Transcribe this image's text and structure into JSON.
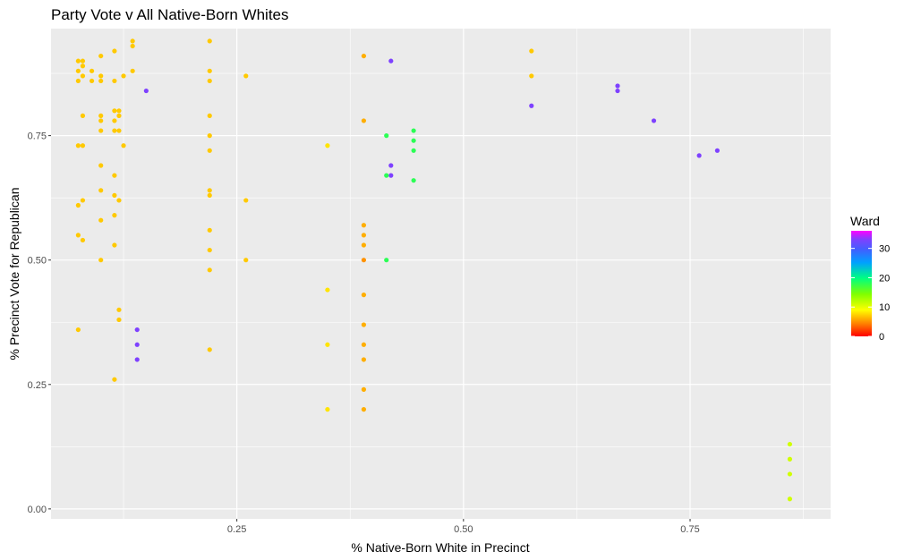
{
  "chart_data": {
    "type": "scatter",
    "title": "Party Vote v All Native-Born Whites",
    "xlabel": "% Native-Born White in Precinct",
    "ylabel": "% Precinct Vote for Republican",
    "xlim": [
      0.045,
      0.905
    ],
    "ylim": [
      -0.02,
      0.965
    ],
    "x_ticks": [
      0.25,
      0.5,
      0.75
    ],
    "x_tick_labels": [
      "0.25",
      "0.50",
      "0.75"
    ],
    "y_ticks": [
      0.0,
      0.25,
      0.5,
      0.75
    ],
    "y_tick_labels": [
      "0.00",
      "0.25",
      "0.50",
      "0.75"
    ],
    "grid": true,
    "legend": {
      "title": "Ward",
      "position": "right",
      "type": "colorbar",
      "range": [
        0,
        36
      ],
      "ticks": [
        0,
        10,
        20,
        30
      ],
      "tick_labels": [
        "0",
        "10",
        "20",
        "30"
      ],
      "palette": [
        "#ff0000",
        "#ff8000",
        "#ffff00",
        "#80ff00",
        "#00ff80",
        "#00a0ff",
        "#4060ff",
        "#8040ff",
        "#ff00ff"
      ]
    },
    "points_explicit": [
      {
        "x": 0.075,
        "y": 0.36,
        "ward": 7
      },
      {
        "x": 0.075,
        "y": 0.55,
        "ward": 7
      },
      {
        "x": 0.075,
        "y": 0.61,
        "ward": 7
      },
      {
        "x": 0.075,
        "y": 0.73,
        "ward": 7
      },
      {
        "x": 0.075,
        "y": 0.86,
        "ward": 7
      },
      {
        "x": 0.075,
        "y": 0.88,
        "ward": 7
      },
      {
        "x": 0.075,
        "y": 0.9,
        "ward": 7
      },
      {
        "x": 0.08,
        "y": 0.54,
        "ward": 7
      },
      {
        "x": 0.08,
        "y": 0.62,
        "ward": 7
      },
      {
        "x": 0.08,
        "y": 0.73,
        "ward": 7
      },
      {
        "x": 0.08,
        "y": 0.79,
        "ward": 7
      },
      {
        "x": 0.08,
        "y": 0.87,
        "ward": 7
      },
      {
        "x": 0.08,
        "y": 0.89,
        "ward": 7
      },
      {
        "x": 0.08,
        "y": 0.9,
        "ward": 7
      },
      {
        "x": 0.09,
        "y": 0.86,
        "ward": 7
      },
      {
        "x": 0.09,
        "y": 0.88,
        "ward": 7
      },
      {
        "x": 0.1,
        "y": 0.5,
        "ward": 7
      },
      {
        "x": 0.1,
        "y": 0.58,
        "ward": 7
      },
      {
        "x": 0.1,
        "y": 0.64,
        "ward": 7
      },
      {
        "x": 0.1,
        "y": 0.69,
        "ward": 7
      },
      {
        "x": 0.1,
        "y": 0.76,
        "ward": 7
      },
      {
        "x": 0.1,
        "y": 0.78,
        "ward": 7
      },
      {
        "x": 0.1,
        "y": 0.79,
        "ward": 7
      },
      {
        "x": 0.1,
        "y": 0.86,
        "ward": 7
      },
      {
        "x": 0.1,
        "y": 0.87,
        "ward": 7
      },
      {
        "x": 0.1,
        "y": 0.91,
        "ward": 7
      },
      {
        "x": 0.115,
        "y": 0.26,
        "ward": 7
      },
      {
        "x": 0.115,
        "y": 0.53,
        "ward": 7
      },
      {
        "x": 0.115,
        "y": 0.59,
        "ward": 7
      },
      {
        "x": 0.115,
        "y": 0.63,
        "ward": 7
      },
      {
        "x": 0.115,
        "y": 0.67,
        "ward": 7
      },
      {
        "x": 0.115,
        "y": 0.76,
        "ward": 7
      },
      {
        "x": 0.115,
        "y": 0.78,
        "ward": 7
      },
      {
        "x": 0.115,
        "y": 0.8,
        "ward": 7
      },
      {
        "x": 0.115,
        "y": 0.86,
        "ward": 7
      },
      {
        "x": 0.115,
        "y": 0.92,
        "ward": 7
      },
      {
        "x": 0.12,
        "y": 0.38,
        "ward": 7
      },
      {
        "x": 0.12,
        "y": 0.4,
        "ward": 7
      },
      {
        "x": 0.12,
        "y": 0.62,
        "ward": 7
      },
      {
        "x": 0.12,
        "y": 0.76,
        "ward": 7
      },
      {
        "x": 0.12,
        "y": 0.79,
        "ward": 7
      },
      {
        "x": 0.12,
        "y": 0.8,
        "ward": 7
      },
      {
        "x": 0.125,
        "y": 0.73,
        "ward": 7
      },
      {
        "x": 0.125,
        "y": 0.87,
        "ward": 7
      },
      {
        "x": 0.135,
        "y": 0.88,
        "ward": 7
      },
      {
        "x": 0.135,
        "y": 0.93,
        "ward": 7
      },
      {
        "x": 0.135,
        "y": 0.94,
        "ward": 7
      },
      {
        "x": 0.14,
        "y": 0.3,
        "ward": 33
      },
      {
        "x": 0.14,
        "y": 0.33,
        "ward": 33
      },
      {
        "x": 0.14,
        "y": 0.36,
        "ward": 33
      },
      {
        "x": 0.15,
        "y": 0.84,
        "ward": 33
      },
      {
        "x": 0.22,
        "y": 0.32,
        "ward": 7
      },
      {
        "x": 0.22,
        "y": 0.48,
        "ward": 7
      },
      {
        "x": 0.22,
        "y": 0.52,
        "ward": 7
      },
      {
        "x": 0.22,
        "y": 0.56,
        "ward": 7
      },
      {
        "x": 0.22,
        "y": 0.63,
        "ward": 7
      },
      {
        "x": 0.22,
        "y": 0.64,
        "ward": 7
      },
      {
        "x": 0.22,
        "y": 0.72,
        "ward": 7
      },
      {
        "x": 0.22,
        "y": 0.75,
        "ward": 7
      },
      {
        "x": 0.22,
        "y": 0.79,
        "ward": 7
      },
      {
        "x": 0.22,
        "y": 0.86,
        "ward": 7
      },
      {
        "x": 0.22,
        "y": 0.88,
        "ward": 7
      },
      {
        "x": 0.22,
        "y": 0.94,
        "ward": 7
      },
      {
        "x": 0.26,
        "y": 0.5,
        "ward": 7
      },
      {
        "x": 0.26,
        "y": 0.62,
        "ward": 7
      },
      {
        "x": 0.26,
        "y": 0.87,
        "ward": 7
      },
      {
        "x": 0.35,
        "y": 0.2,
        "ward": 8
      },
      {
        "x": 0.35,
        "y": 0.33,
        "ward": 8
      },
      {
        "x": 0.35,
        "y": 0.44,
        "ward": 8
      },
      {
        "x": 0.35,
        "y": 0.73,
        "ward": 8
      },
      {
        "x": 0.39,
        "y": 0.2,
        "ward": 6
      },
      {
        "x": 0.39,
        "y": 0.24,
        "ward": 6
      },
      {
        "x": 0.39,
        "y": 0.3,
        "ward": 6
      },
      {
        "x": 0.39,
        "y": 0.33,
        "ward": 6
      },
      {
        "x": 0.39,
        "y": 0.37,
        "ward": 6
      },
      {
        "x": 0.39,
        "y": 0.43,
        "ward": 6
      },
      {
        "x": 0.39,
        "y": 0.5,
        "ward": 5
      },
      {
        "x": 0.39,
        "y": 0.53,
        "ward": 6
      },
      {
        "x": 0.39,
        "y": 0.55,
        "ward": 6
      },
      {
        "x": 0.39,
        "y": 0.57,
        "ward": 6
      },
      {
        "x": 0.39,
        "y": 0.78,
        "ward": 6
      },
      {
        "x": 0.39,
        "y": 0.91,
        "ward": 6
      },
      {
        "x": 0.42,
        "y": 0.9,
        "ward": 33
      },
      {
        "x": 0.42,
        "y": 0.67,
        "ward": 33
      },
      {
        "x": 0.42,
        "y": 0.69,
        "ward": 33
      },
      {
        "x": 0.415,
        "y": 0.75,
        "ward": 18
      },
      {
        "x": 0.415,
        "y": 0.67,
        "ward": 18
      },
      {
        "x": 0.415,
        "y": 0.5,
        "ward": 18
      },
      {
        "x": 0.445,
        "y": 0.76,
        "ward": 18
      },
      {
        "x": 0.445,
        "y": 0.74,
        "ward": 18
      },
      {
        "x": 0.445,
        "y": 0.72,
        "ward": 18
      },
      {
        "x": 0.445,
        "y": 0.66,
        "ward": 18
      },
      {
        "x": 0.575,
        "y": 0.92,
        "ward": 7
      },
      {
        "x": 0.575,
        "y": 0.87,
        "ward": 7
      },
      {
        "x": 0.575,
        "y": 0.81,
        "ward": 33
      },
      {
        "x": 0.67,
        "y": 0.85,
        "ward": 33
      },
      {
        "x": 0.67,
        "y": 0.84,
        "ward": 33
      },
      {
        "x": 0.71,
        "y": 0.78,
        "ward": 33
      },
      {
        "x": 0.76,
        "y": 0.71,
        "ward": 33
      },
      {
        "x": 0.78,
        "y": 0.72,
        "ward": 33
      },
      {
        "x": 0.86,
        "y": 0.02,
        "ward": 11
      },
      {
        "x": 0.86,
        "y": 0.07,
        "ward": 11
      },
      {
        "x": 0.86,
        "y": 0.1,
        "ward": 11
      },
      {
        "x": 0.86,
        "y": 0.13,
        "ward": 11
      }
    ],
    "cloud_note_omitted": false
  }
}
